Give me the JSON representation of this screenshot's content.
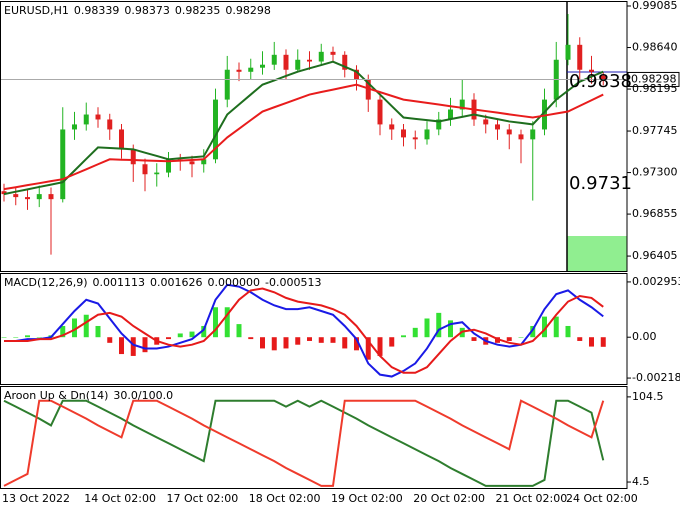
{
  "chart_data": [
    {
      "type": "candlestick",
      "title": "EURUSD,H1",
      "ohlc": [
        0.98339,
        0.98373,
        0.98235,
        0.98298
      ],
      "up_color": "#22b422",
      "down_color": "#e02020",
      "open": [
        0.971,
        0.97069,
        0.97037,
        0.97015,
        0.97069,
        0.97015,
        0.97762,
        0.97816,
        0.97922,
        0.97869,
        0.97762,
        0.97549,
        0.97389,
        0.97282,
        0.973,
        0.97442,
        0.9742,
        0.97389,
        0.97442,
        0.98082,
        0.98402,
        0.9838,
        0.98424,
        0.98456,
        0.98562,
        0.98402,
        0.98509,
        0.9849,
        0.98594,
        0.98562,
        0.98402,
        0.98296,
        0.98082,
        0.97816,
        0.97762,
        0.97677,
        0.97656,
        0.97762,
        0.97869,
        0.97976,
        0.98082,
        0.97869,
        0.97816,
        0.97762,
        0.97709,
        0.97656,
        0.97762,
        0.98082,
        0.98509,
        0.98669,
        0.98402,
        0.98339
      ],
      "high": [
        0.9718,
        0.9715,
        0.9712,
        0.9716,
        0.9714,
        0.98,
        0.9795,
        0.9805,
        0.98,
        0.9793,
        0.9782,
        0.976,
        0.9745,
        0.974,
        0.9752,
        0.975,
        0.9748,
        0.9755,
        0.982,
        0.9855,
        0.9848,
        0.9852,
        0.986,
        0.987,
        0.9862,
        0.9862,
        0.986,
        0.9868,
        0.9865,
        0.986,
        0.9845,
        0.9835,
        0.9815,
        0.9788,
        0.9782,
        0.9775,
        0.9785,
        0.9795,
        0.981,
        0.983,
        0.9815,
        0.9792,
        0.9788,
        0.9782,
        0.9776,
        0.9785,
        0.982,
        0.987,
        0.99,
        0.9875,
        0.9855,
        0.98373
      ],
      "low": [
        0.9699,
        0.9695,
        0.969,
        0.9693,
        0.9642,
        0.9698,
        0.9765,
        0.9775,
        0.9778,
        0.9765,
        0.9745,
        0.972,
        0.971,
        0.9715,
        0.9725,
        0.9732,
        0.9725,
        0.973,
        0.974,
        0.98,
        0.9828,
        0.983,
        0.9835,
        0.984,
        0.983,
        0.9838,
        0.984,
        0.9845,
        0.9848,
        0.9832,
        0.9818,
        0.9795,
        0.977,
        0.9765,
        0.9758,
        0.9755,
        0.976,
        0.977,
        0.978,
        0.979,
        0.978,
        0.9772,
        0.9765,
        0.9755,
        0.974,
        0.97,
        0.977,
        0.98,
        0.9845,
        0.983,
        0.9825,
        0.98235
      ],
      "close": [
        0.97069,
        0.97037,
        0.97015,
        0.97069,
        0.97015,
        0.97762,
        0.97816,
        0.97922,
        0.97869,
        0.97762,
        0.97549,
        0.97389,
        0.97282,
        0.973,
        0.97442,
        0.9742,
        0.97389,
        0.97442,
        0.98082,
        0.98402,
        0.9838,
        0.98424,
        0.98456,
        0.98562,
        0.98402,
        0.98509,
        0.9849,
        0.98594,
        0.98562,
        0.98402,
        0.98296,
        0.98082,
        0.97816,
        0.97762,
        0.97677,
        0.97656,
        0.97762,
        0.97869,
        0.97976,
        0.98082,
        0.97869,
        0.97816,
        0.97762,
        0.97709,
        0.97656,
        0.97762,
        0.98082,
        0.98509,
        0.98669,
        0.98402,
        0.9838,
        0.98298
      ],
      "series": [
        {
          "color": "#1e6e1e",
          "values": [
            0.97069,
            0.97095,
            0.9712,
            0.97146,
            0.97171,
            0.97197,
            0.97321,
            0.97446,
            0.9757,
            0.97563,
            0.97556,
            0.97549,
            0.97513,
            0.97478,
            0.97442,
            0.97453,
            0.97463,
            0.97474,
            0.97698,
            0.97922,
            0.98029,
            0.98136,
            0.98242,
            0.98288,
            0.98335,
            0.98381,
            0.98417,
            0.98452,
            0.98488,
            0.98435,
            0.98381,
            0.98259,
            0.98136,
            0.98013,
            0.9789,
            0.97876,
            0.97862,
            0.97848,
            0.97873,
            0.97897,
            0.97922,
            0.97897,
            0.97873,
            0.97848,
            0.97832,
            0.97816,
            0.97949,
            0.98082,
            0.98178,
            0.98274,
            0.98328,
            0.98381
          ]
        },
        {
          "color": "#e81c1c",
          "values": [
            0.97122,
            0.97143,
            0.97165,
            0.97186,
            0.97208,
            0.97229,
            0.97282,
            0.97335,
            0.97389,
            0.97442,
            0.97438,
            0.97434,
            0.97429,
            0.97425,
            0.97421,
            0.97428,
            0.97435,
            0.97442,
            0.9756,
            0.97677,
            0.97769,
            0.97862,
            0.97954,
            0.98,
            0.98045,
            0.98091,
            0.98136,
            0.98163,
            0.98189,
            0.98216,
            0.98242,
            0.98202,
            0.98162,
            0.98122,
            0.98082,
            0.98064,
            0.98047,
            0.98029,
            0.98011,
            0.97994,
            0.97976,
            0.97959,
            0.97942,
            0.97924,
            0.97907,
            0.9789,
            0.97911,
            0.97933,
            0.97954,
            0.98015,
            0.98075,
            0.98136
          ]
        }
      ],
      "last_price": 0.98298,
      "annotations": [
        {
          "text": "0.9838",
          "color": "#1c1cb4"
        },
        {
          "text": "0.9731",
          "color": "#2a8a2a"
        }
      ],
      "ylim": [
        0.96245,
        0.99128
      ],
      "yticks": [
        0.99085,
        {
          "value": 0.9864,
          "label": "0.98640"
        },
        0.98195,
        0.97745,
        {
          "value": 0.973,
          "label": "0.97300"
        },
        0.96855,
        0.96405
      ]
    },
    {
      "type": "macd",
      "title": "MACD(12,26,9)",
      "readout": [
        0.001113,
        0.001626,
        {
          "value": 0,
          "label": "0.000000"
        },
        -0.000513
      ],
      "up_color": "#33e033",
      "down_color": "#e61a1a",
      "histogram": [
        0,
        0,
        0.0001,
        0,
        0.0001,
        0.0006,
        0.001,
        0.0012,
        0.0006,
        -0.0003,
        -0.0009,
        -0.001,
        -0.0008,
        -0.0004,
        -0.0001,
        0.0002,
        0.0003,
        0.0006,
        0.0016,
        0.0016,
        0.0007,
        -0.0001,
        -0.0006,
        -0.0007,
        -0.0006,
        -0.0004,
        -0.0002,
        -0.0003,
        -0.0003,
        -0.0006,
        -0.0007,
        -0.0012,
        -0.001,
        -0.0005,
        0.0001,
        0.0005,
        0.001,
        0.0013,
        0.0009,
        0.0005,
        -0.0002,
        -0.0004,
        -0.0003,
        -0.0002,
        0,
        0.0006,
        0.0011,
        0.0011,
        0.0006,
        -0.0002,
        -0.0005,
        -0.000513
      ],
      "series": [
        {
          "color": "#1a1ae6",
          "values": [
            -0.0002,
            -0.0002,
            -0.0001,
            -0.0001,
            0,
            0.0007,
            0.0014,
            0.002,
            0.0018,
            0.001,
            0.0002,
            -0.0004,
            -0.0006,
            -0.0006,
            -0.0005,
            -0.0003,
            -0.0001,
            0.0004,
            0.002,
            0.0028,
            0.0027,
            0.0024,
            0.002,
            0.0017,
            0.0015,
            0.0015,
            0.0016,
            0.0014,
            0.0012,
            0.0006,
            -0.0001,
            -0.0014,
            -0.002,
            -0.0021,
            -0.0018,
            -0.0014,
            -0.0006,
            0.0004,
            0.0007,
            0.0008,
            0.0002,
            -0.0002,
            -0.0004,
            -0.0005,
            -0.0004,
            0.0004,
            0.0015,
            0.0023,
            0.0025,
            0.002,
            0.0016,
            0.001113
          ]
        },
        {
          "color": "#e61a1a",
          "values": [
            -0.0002,
            -0.0002,
            -0.0002,
            -0.0001,
            -0.0001,
            0.0001,
            0.0004,
            0.0008,
            0.0012,
            0.0013,
            0.0011,
            0.0006,
            0.0002,
            -0.0002,
            -0.0004,
            -0.0005,
            -0.0004,
            -0.0002,
            0.0004,
            0.0012,
            0.002,
            0.0025,
            0.0026,
            0.0024,
            0.0021,
            0.0019,
            0.0018,
            0.0017,
            0.0015,
            0.0012,
            0.0006,
            -0.0002,
            -0.001,
            -0.0016,
            -0.0019,
            -0.0019,
            -0.0016,
            -0.0009,
            -0.0002,
            0.0003,
            0.0004,
            0.0002,
            -0.0001,
            -0.0003,
            -0.0004,
            -0.0002,
            0.0004,
            0.0012,
            0.0019,
            0.0022,
            0.0021,
            0.001626
          ]
        }
      ],
      "ylim": [
        -0.002499,
        0.003376
      ],
      "yticks": [
        0.002953,
        {
          "value": 0,
          "label": "0.00"
        },
        -0.002182
      ]
    },
    {
      "type": "line",
      "title": "Aroon Up & Dn(14)",
      "readout": "30.0/100.0",
      "categories": [
        "13 Oct 2022",
        null,
        null,
        null,
        null,
        null,
        null,
        "14 Oct 02:00",
        null,
        null,
        null,
        null,
        null,
        null,
        "17 Oct 02:00",
        null,
        null,
        null,
        null,
        null,
        null,
        "18 Oct 02:00",
        null,
        null,
        null,
        null,
        null,
        null,
        "19 Oct 02:00",
        null,
        null,
        null,
        null,
        null,
        null,
        "20 Oct 02:00",
        null,
        null,
        null,
        null,
        null,
        null,
        "21 Oct 02:00",
        null,
        null,
        null,
        null,
        null,
        "24 Oct 02:00",
        null,
        null,
        null
      ],
      "series": [
        {
          "color": "#2e7d2e",
          "values": [
            100,
            93,
            86,
            79,
            71,
            100,
            100,
            100,
            93,
            86,
            79,
            71,
            64,
            57,
            50,
            43,
            36,
            29,
            100,
            100,
            100,
            100,
            100,
            100,
            93,
            100,
            93,
            100,
            93,
            86,
            79,
            71,
            64,
            57,
            50,
            43,
            36,
            29,
            21,
            14,
            7,
            0,
            0,
            0,
            0,
            0,
            7,
            100,
            100,
            93,
            86,
            30
          ]
        },
        {
          "color": "#ef3b2c",
          "values": [
            0,
            7,
            14,
            100,
            100,
            93,
            86,
            79,
            71,
            64,
            57,
            100,
            100,
            100,
            93,
            86,
            79,
            71,
            64,
            57,
            50,
            43,
            36,
            29,
            21,
            14,
            7,
            0,
            0,
            100,
            100,
            100,
            100,
            100,
            100,
            100,
            93,
            86,
            79,
            71,
            64,
            57,
            50,
            43,
            100,
            93,
            86,
            79,
            71,
            64,
            57,
            100
          ]
        }
      ],
      "ylim": [
        -2.5,
        116.1
      ],
      "yticks": [
        104.5,
        4.5
      ]
    }
  ]
}
